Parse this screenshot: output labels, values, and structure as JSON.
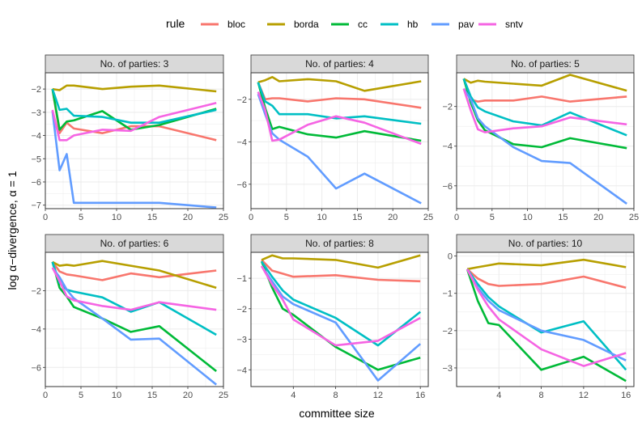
{
  "chart_data": {
    "type": "line",
    "xlabel": "committee size",
    "ylabel": "log α−divergence, α = 1",
    "legend": {
      "title": "rule",
      "placement": "top",
      "entries": [
        {
          "name": "bloc",
          "color": "#F8766D"
        },
        {
          "name": "borda",
          "color": "#B79F00"
        },
        {
          "name": "cc",
          "color": "#00BA38"
        },
        {
          "name": "hb",
          "color": "#00BFC4"
        },
        {
          "name": "pav",
          "color": "#619CFF"
        },
        {
          "name": "sntv",
          "color": "#F564E3"
        }
      ]
    },
    "grid": true,
    "panels": [
      {
        "strip": "No. of parties: 3",
        "xlim": [
          0,
          25
        ],
        "ylim": [
          -7.15,
          -1.3
        ],
        "xticks": [
          0,
          5,
          10,
          15,
          20,
          25
        ],
        "yticks": [
          -7,
          -6,
          -5,
          -4,
          -3,
          -2
        ],
        "series": [
          {
            "name": "bloc",
            "x": [
              1,
              2,
              3,
              4,
              8,
              12,
              16,
              24
            ],
            "y": [
              -2.0,
              -3.9,
              -3.45,
              -3.7,
              -3.9,
              -3.6,
              -3.6,
              -4.2
            ]
          },
          {
            "name": "borda",
            "x": [
              1,
              2,
              3,
              4,
              8,
              12,
              16,
              24
            ],
            "y": [
              -2.0,
              -2.05,
              -1.85,
              -1.85,
              -2.0,
              -1.9,
              -1.85,
              -2.1
            ]
          },
          {
            "name": "cc",
            "x": [
              1,
              2,
              3,
              4,
              8,
              12,
              16,
              24
            ],
            "y": [
              -2.0,
              -3.75,
              -3.4,
              -3.35,
              -2.95,
              -3.75,
              -3.55,
              -2.85
            ]
          },
          {
            "name": "hb",
            "x": [
              1,
              2,
              3,
              4,
              8,
              12,
              16,
              24
            ],
            "y": [
              -2.0,
              -2.9,
              -2.85,
              -3.15,
              -3.2,
              -3.45,
              -3.45,
              -2.9
            ]
          },
          {
            "name": "pav",
            "x": [
              1,
              2,
              3,
              4,
              8,
              12,
              16,
              24
            ],
            "y": [
              -2.95,
              -5.5,
              -4.8,
              -6.9,
              -6.9,
              -6.9,
              -6.9,
              -7.1
            ]
          },
          {
            "name": "sntv",
            "x": [
              1,
              2,
              3,
              4,
              8,
              12,
              16,
              24
            ],
            "y": [
              -2.9,
              -4.2,
              -4.2,
              -4.0,
              -3.75,
              -3.8,
              -3.2,
              -2.6
            ]
          }
        ]
      },
      {
        "strip": "No. of parties: 4",
        "xlim": [
          0,
          25
        ],
        "ylim": [
          -7.15,
          -0.75
        ],
        "xticks": [
          0,
          5,
          10,
          15,
          20,
          25
        ],
        "yticks": [
          -6,
          -4,
          -2
        ],
        "series": [
          {
            "name": "bloc",
            "x": [
              1,
              2,
              3,
              4,
              8,
              12,
              16,
              24
            ],
            "y": [
              -1.2,
              -2.0,
              -1.95,
              -1.95,
              -2.1,
              -1.95,
              -2.0,
              -2.4
            ]
          },
          {
            "name": "borda",
            "x": [
              1,
              2,
              3,
              4,
              8,
              12,
              16,
              24
            ],
            "y": [
              -1.2,
              -1.1,
              -0.95,
              -1.15,
              -1.05,
              -1.15,
              -1.6,
              -1.15
            ]
          },
          {
            "name": "cc",
            "x": [
              1,
              2,
              3,
              4,
              8,
              12,
              16,
              24
            ],
            "y": [
              -1.2,
              -2.4,
              -3.4,
              -3.3,
              -3.65,
              -3.8,
              -3.5,
              -3.95
            ]
          },
          {
            "name": "hb",
            "x": [
              1,
              2,
              3,
              4,
              8,
              12,
              16,
              24
            ],
            "y": [
              -1.2,
              -2.1,
              -2.3,
              -2.7,
              -2.7,
              -2.9,
              -2.8,
              -3.15
            ]
          },
          {
            "name": "pav",
            "x": [
              1,
              2,
              3,
              4,
              8,
              12,
              16,
              24
            ],
            "y": [
              -1.75,
              -2.7,
              -3.6,
              -3.9,
              -4.7,
              -6.2,
              -5.5,
              -6.9
            ]
          },
          {
            "name": "sntv",
            "x": [
              1,
              2,
              3,
              4,
              8,
              12,
              16,
              24
            ],
            "y": [
              -1.65,
              -2.5,
              -3.95,
              -3.9,
              -3.2,
              -2.8,
              -3.1,
              -4.1
            ]
          }
        ]
      },
      {
        "strip": "No. of parties: 5",
        "xlim": [
          0,
          25
        ],
        "ylim": [
          -7.15,
          -0.3
        ],
        "xticks": [
          0,
          5,
          10,
          15,
          20,
          25
        ],
        "yticks": [
          -6,
          -4,
          -2
        ],
        "series": [
          {
            "name": "bloc",
            "x": [
              1,
              2,
              3,
              4,
              8,
              12,
              16,
              24
            ],
            "y": [
              -0.6,
              -1.65,
              -1.75,
              -1.7,
              -1.7,
              -1.5,
              -1.75,
              -1.5
            ]
          },
          {
            "name": "borda",
            "x": [
              1,
              2,
              3,
              4,
              8,
              12,
              16,
              24
            ],
            "y": [
              -0.6,
              -0.8,
              -0.7,
              -0.75,
              -0.85,
              -0.95,
              -0.4,
              -1.2
            ]
          },
          {
            "name": "cc",
            "x": [
              1,
              2,
              3,
              4,
              8,
              12,
              16,
              24
            ],
            "y": [
              -0.6,
              -1.8,
              -2.7,
              -3.2,
              -3.9,
              -4.05,
              -3.6,
              -4.1
            ]
          },
          {
            "name": "hb",
            "x": [
              1,
              2,
              3,
              4,
              8,
              12,
              16,
              24
            ],
            "y": [
              -0.6,
              -1.5,
              -2.05,
              -2.25,
              -2.75,
              -2.95,
              -2.3,
              -3.45
            ]
          },
          {
            "name": "pav",
            "x": [
              1,
              2,
              3,
              4,
              8,
              12,
              16,
              24
            ],
            "y": [
              -1.1,
              -1.65,
              -2.6,
              -3.0,
              -4.05,
              -4.75,
              -4.85,
              -6.9
            ]
          },
          {
            "name": "sntv",
            "x": [
              1,
              2,
              3,
              4,
              8,
              12,
              16,
              24
            ],
            "y": [
              -1.1,
              -2.2,
              -3.15,
              -3.3,
              -3.1,
              -3.0,
              -2.55,
              -2.9
            ]
          }
        ]
      },
      {
        "strip": "No. of parties: 6",
        "xlim": [
          0,
          25
        ],
        "ylim": [
          -7.0,
          0.0
        ],
        "xticks": [
          0,
          5,
          10,
          15,
          20,
          25
        ],
        "yticks": [
          -6,
          -4,
          -2
        ],
        "series": [
          {
            "name": "bloc",
            "x": [
              1,
              2,
              3,
              4,
              8,
              12,
              16,
              24
            ],
            "y": [
              -0.5,
              -1.0,
              -1.15,
              -1.2,
              -1.45,
              -1.1,
              -1.3,
              -0.95
            ]
          },
          {
            "name": "borda",
            "x": [
              1,
              2,
              3,
              4,
              8,
              12,
              16,
              24
            ],
            "y": [
              -0.5,
              -0.7,
              -0.65,
              -0.7,
              -0.45,
              -0.7,
              -0.95,
              -1.85
            ]
          },
          {
            "name": "cc",
            "x": [
              1,
              2,
              3,
              4,
              8,
              12,
              16,
              24
            ],
            "y": [
              -0.5,
              -1.85,
              -2.3,
              -2.85,
              -3.45,
              -4.15,
              -3.85,
              -6.2
            ]
          },
          {
            "name": "hb",
            "x": [
              1,
              2,
              3,
              4,
              8,
              12,
              16,
              24
            ],
            "y": [
              -0.5,
              -1.6,
              -1.95,
              -2.05,
              -2.35,
              -3.1,
              -2.6,
              -4.3
            ]
          },
          {
            "name": "pav",
            "x": [
              1,
              2,
              3,
              4,
              8,
              12,
              16,
              24
            ],
            "y": [
              -0.8,
              -1.3,
              -1.95,
              -2.4,
              -3.45,
              -4.55,
              -4.5,
              -6.9
            ]
          },
          {
            "name": "sntv",
            "x": [
              1,
              2,
              3,
              4,
              8,
              12,
              16,
              24
            ],
            "y": [
              -0.8,
              -1.5,
              -2.3,
              -2.5,
              -2.8,
              -3.0,
              -2.6,
              -3.0
            ]
          }
        ]
      },
      {
        "strip": "No. of parties: 8",
        "xlim": [
          0,
          16.75
        ],
        "ylim": [
          -4.55,
          -0.15
        ],
        "xticks": [
          4,
          8,
          12,
          16
        ],
        "yticks": [
          -4,
          -3,
          -2,
          -1
        ],
        "series": [
          {
            "name": "bloc",
            "x": [
              1,
              2,
              3,
              4,
              8,
              12,
              16
            ],
            "y": [
              -0.4,
              -0.75,
              -0.85,
              -0.95,
              -0.9,
              -1.05,
              -1.1
            ]
          },
          {
            "name": "borda",
            "x": [
              1,
              2,
              3,
              4,
              8,
              12,
              16
            ],
            "y": [
              -0.4,
              -0.25,
              -0.35,
              -0.35,
              -0.4,
              -0.65,
              -0.25
            ]
          },
          {
            "name": "cc",
            "x": [
              1,
              2,
              3,
              4,
              8,
              12,
              16
            ],
            "y": [
              -0.45,
              -1.3,
              -2.0,
              -2.2,
              -3.25,
              -4.0,
              -3.6
            ]
          },
          {
            "name": "hb",
            "x": [
              1,
              2,
              3,
              4,
              8,
              12,
              16
            ],
            "y": [
              -0.45,
              -0.95,
              -1.4,
              -1.7,
              -2.3,
              -3.2,
              -2.1
            ]
          },
          {
            "name": "pav",
            "x": [
              1,
              2,
              3,
              4,
              8,
              12,
              16
            ],
            "y": [
              -0.6,
              -1.1,
              -1.6,
              -1.85,
              -2.45,
              -4.35,
              -3.15
            ]
          },
          {
            "name": "sntv",
            "x": [
              1,
              2,
              3,
              4,
              8,
              12,
              16
            ],
            "y": [
              -0.6,
              -1.2,
              -1.7,
              -2.35,
              -3.2,
              -3.05,
              -2.3
            ]
          }
        ]
      },
      {
        "strip": "No. of parties: 10",
        "xlim": [
          0,
          16.75
        ],
        "ylim": [
          -3.5,
          0.1
        ],
        "xticks": [
          4,
          8,
          12,
          16
        ],
        "yticks": [
          -3,
          -2,
          -1,
          0
        ],
        "series": [
          {
            "name": "bloc",
            "x": [
              1,
              2,
              3,
              4,
              8,
              12,
              16
            ],
            "y": [
              -0.35,
              -0.6,
              -0.75,
              -0.8,
              -0.75,
              -0.55,
              -0.85
            ]
          },
          {
            "name": "borda",
            "x": [
              1,
              2,
              3,
              4,
              8,
              12,
              16
            ],
            "y": [
              -0.35,
              -0.3,
              -0.25,
              -0.2,
              -0.25,
              -0.1,
              -0.3
            ]
          },
          {
            "name": "cc",
            "x": [
              1,
              2,
              3,
              4,
              8,
              12,
              16
            ],
            "y": [
              -0.35,
              -1.2,
              -1.8,
              -1.85,
              -3.05,
              -2.7,
              -3.35
            ]
          },
          {
            "name": "hb",
            "x": [
              1,
              2,
              3,
              4,
              8,
              12,
              16
            ],
            "y": [
              -0.35,
              -0.75,
              -1.1,
              -1.35,
              -2.05,
              -1.75,
              -3.05
            ]
          },
          {
            "name": "pav",
            "x": [
              1,
              2,
              3,
              4,
              8,
              12,
              16
            ],
            "y": [
              -0.35,
              -0.85,
              -1.2,
              -1.45,
              -2.0,
              -2.25,
              -2.8
            ]
          },
          {
            "name": "sntv",
            "x": [
              1,
              2,
              3,
              4,
              8,
              12,
              16
            ],
            "y": [
              -0.35,
              -0.9,
              -1.35,
              -1.7,
              -2.5,
              -2.95,
              -2.6
            ]
          }
        ]
      }
    ]
  }
}
